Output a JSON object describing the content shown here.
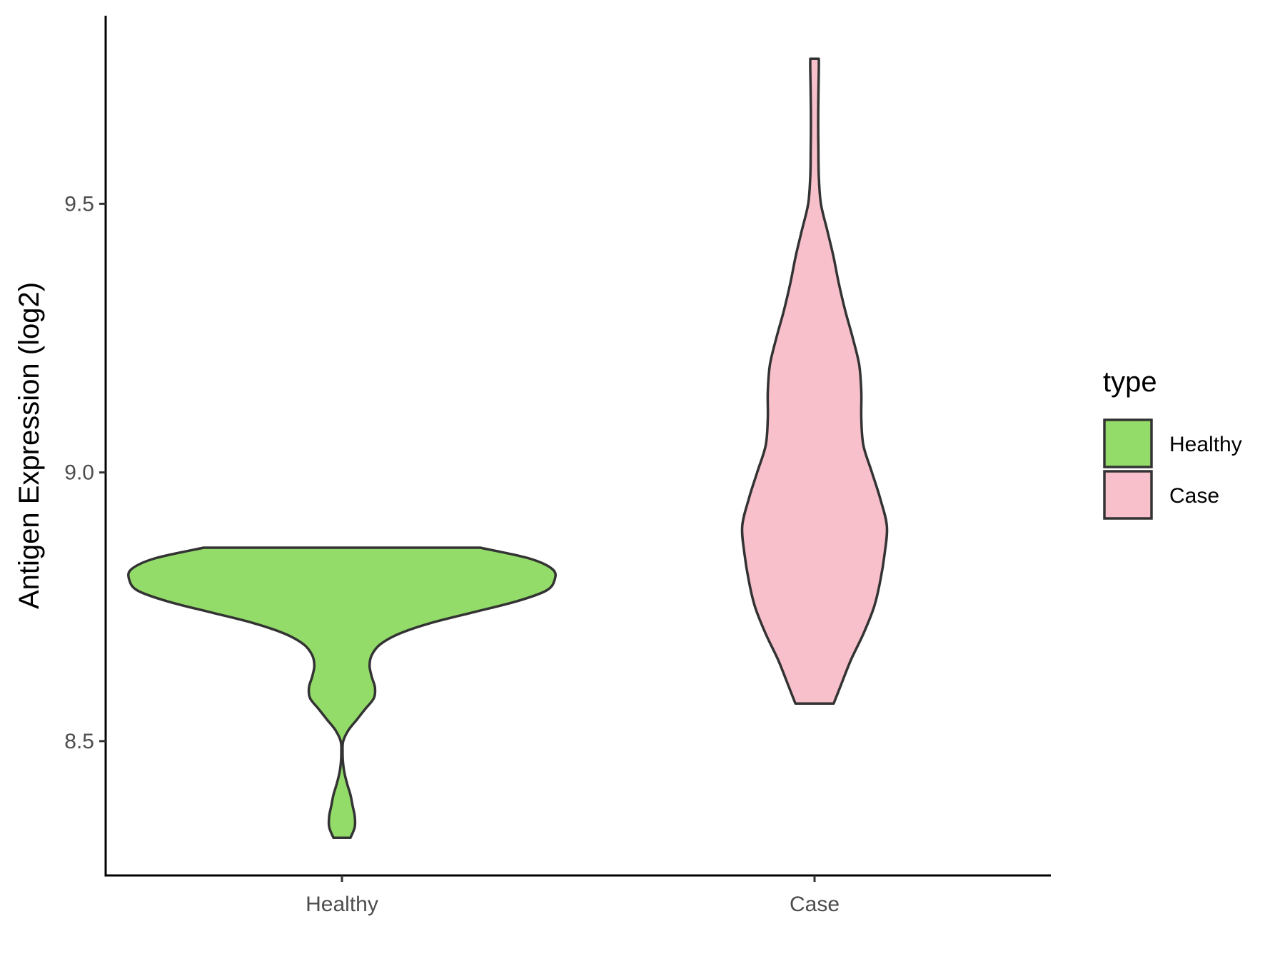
{
  "chart_data": {
    "type": "violin",
    "title": "",
    "xlabel": "",
    "ylabel": "Antigen Expression (log2)",
    "ylim": [
      8.25,
      9.85
    ],
    "yticks": [
      8.5,
      9.0,
      9.5
    ],
    "ytick_labels": [
      "8.5",
      "9.0",
      "9.5"
    ],
    "categories": [
      "Healthy",
      "Case"
    ],
    "grid": false,
    "legend": {
      "title": "type",
      "position": "right",
      "entries": [
        "Healthy",
        "Case"
      ]
    },
    "series": [
      {
        "name": "Healthy",
        "color": "#93dc6a",
        "range": [
          8.32,
          8.86
        ],
        "density": [
          [
            8.32,
            0.04
          ],
          [
            8.34,
            0.06
          ],
          [
            8.36,
            0.06
          ],
          [
            8.38,
            0.05
          ],
          [
            8.4,
            0.04
          ],
          [
            8.42,
            0.025
          ],
          [
            8.44,
            0.012
          ],
          [
            8.46,
            0.005
          ],
          [
            8.48,
            0.003
          ],
          [
            8.5,
            0.006
          ],
          [
            8.52,
            0.03
          ],
          [
            8.54,
            0.07
          ],
          [
            8.56,
            0.11
          ],
          [
            8.58,
            0.15
          ],
          [
            8.6,
            0.155
          ],
          [
            8.62,
            0.14
          ],
          [
            8.64,
            0.13
          ],
          [
            8.66,
            0.14
          ],
          [
            8.68,
            0.18
          ],
          [
            8.7,
            0.27
          ],
          [
            8.72,
            0.42
          ],
          [
            8.74,
            0.62
          ],
          [
            8.76,
            0.82
          ],
          [
            8.78,
            0.96
          ],
          [
            8.8,
            1.0
          ],
          [
            8.82,
            0.99
          ],
          [
            8.84,
            0.88
          ],
          [
            8.86,
            0.65
          ]
        ]
      },
      {
        "name": "Case",
        "color": "#f7c0cb",
        "range": [
          8.57,
          9.77
        ],
        "density": [
          [
            8.57,
            0.09
          ],
          [
            8.6,
            0.12
          ],
          [
            8.65,
            0.17
          ],
          [
            8.7,
            0.23
          ],
          [
            8.75,
            0.28
          ],
          [
            8.8,
            0.31
          ],
          [
            8.85,
            0.33
          ],
          [
            8.9,
            0.34
          ],
          [
            8.95,
            0.31
          ],
          [
            9.0,
            0.27
          ],
          [
            9.05,
            0.23
          ],
          [
            9.1,
            0.22
          ],
          [
            9.15,
            0.22
          ],
          [
            9.2,
            0.21
          ],
          [
            9.25,
            0.18
          ],
          [
            9.3,
            0.145
          ],
          [
            9.35,
            0.115
          ],
          [
            9.4,
            0.09
          ],
          [
            9.45,
            0.06
          ],
          [
            9.5,
            0.03
          ],
          [
            9.55,
            0.02
          ],
          [
            9.6,
            0.018
          ],
          [
            9.65,
            0.017
          ],
          [
            9.7,
            0.018
          ],
          [
            9.75,
            0.02
          ],
          [
            9.77,
            0.02
          ]
        ]
      }
    ]
  }
}
